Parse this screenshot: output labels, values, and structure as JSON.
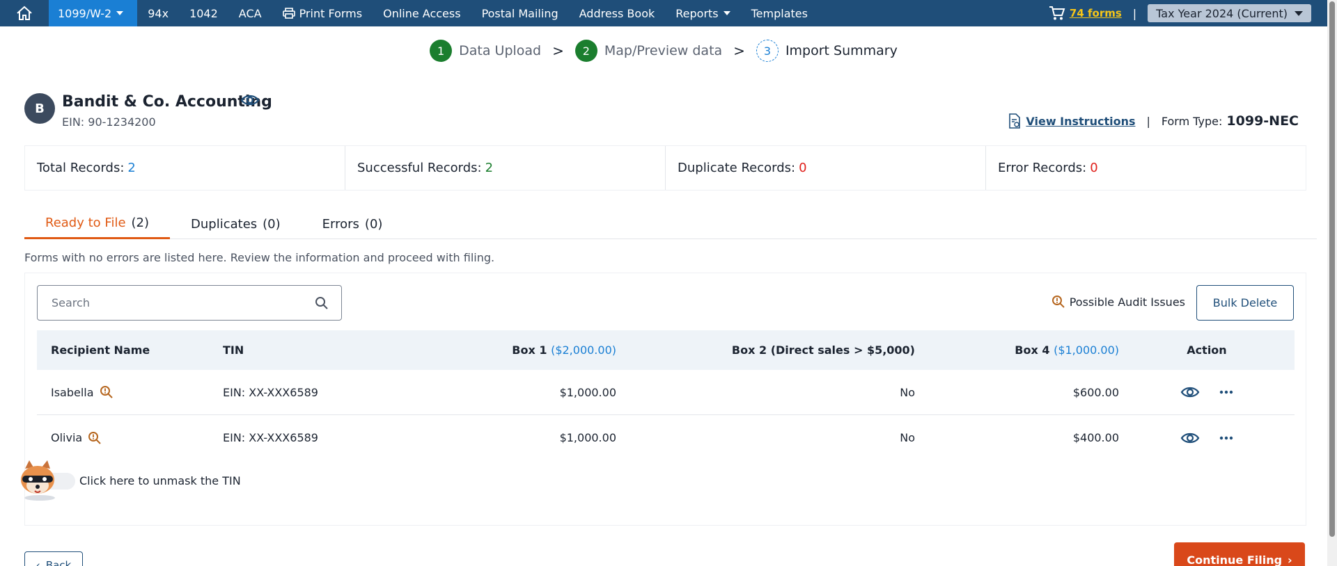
{
  "nav": {
    "home_icon": "home-icon",
    "items": [
      {
        "label": "1099/W-2",
        "dropdown": true,
        "active": true
      },
      {
        "label": "94x"
      },
      {
        "label": "1042"
      },
      {
        "label": "ACA"
      },
      {
        "label": "Print Forms",
        "icon": "printer-icon"
      },
      {
        "label": "Online Access"
      },
      {
        "label": "Postal Mailing"
      },
      {
        "label": "Address Book"
      },
      {
        "label": "Reports",
        "dropdown": true
      },
      {
        "label": "Templates"
      }
    ],
    "cart_icon": "cart-icon",
    "forms_count": "74 forms",
    "separator": "|",
    "tax_year": "Tax Year 2024 (Current)"
  },
  "stepper": {
    "steps": [
      {
        "num": "1",
        "label": "Data Upload"
      },
      {
        "num": "2",
        "label": "Map/Preview data"
      },
      {
        "num": "3",
        "label": "Import Summary"
      }
    ],
    "arrow": ">"
  },
  "company": {
    "initial": "B",
    "name": "Bandit & Co. Accounting",
    "ein": "EIN: 90-1234200"
  },
  "instructions": {
    "link": "View Instructions",
    "separator": "|",
    "form_type_label": "Form Type:",
    "form_type_value": "1099-NEC"
  },
  "summary": {
    "total_label": "Total Records:",
    "total_value": "2",
    "success_label": "Successful Records:",
    "success_value": "2",
    "duplicate_label": "Duplicate Records:",
    "duplicate_value": "0",
    "error_label": "Error Records:",
    "error_value": "0"
  },
  "tabs": [
    {
      "label": "Ready to File",
      "count": "(2)"
    },
    {
      "label": "Duplicates",
      "count": "(0)"
    },
    {
      "label": "Errors",
      "count": "(0)"
    }
  ],
  "tab_description": "Forms with no errors are listed here. Review the information and proceed with filing.",
  "search": {
    "placeholder": "Search"
  },
  "audit_label": "Possible Audit Issues",
  "bulk_delete": "Bulk Delete",
  "table": {
    "headers": {
      "name": "Recipient Name",
      "tin": "TIN",
      "box1": "Box 1",
      "box1_total": "($2,000.00)",
      "box2": "Box 2 (Direct sales > $5,000)",
      "box4": "Box 4",
      "box4_total": "($1,000.00)",
      "action": "Action"
    },
    "rows": [
      {
        "name": "Isabella",
        "tin": "EIN: XX-XXX6589",
        "box1": "$1,000.00",
        "box2": "No",
        "box4": "$600.00"
      },
      {
        "name": "Olivia",
        "tin": "EIN: XX-XXX6589",
        "box1": "$1,000.00",
        "box2": "No",
        "box4": "$400.00"
      }
    ]
  },
  "unmask_label": "Click here to unmask the TIN",
  "buttons": {
    "back": "Back",
    "continue": "Continue Filing"
  },
  "colors": {
    "nav_bg": "#1f4e79",
    "active_nav": "#1a7fd4",
    "accent_orange": "#e05a14",
    "success_green": "#1b7e2e",
    "error_red": "#e0201b"
  }
}
